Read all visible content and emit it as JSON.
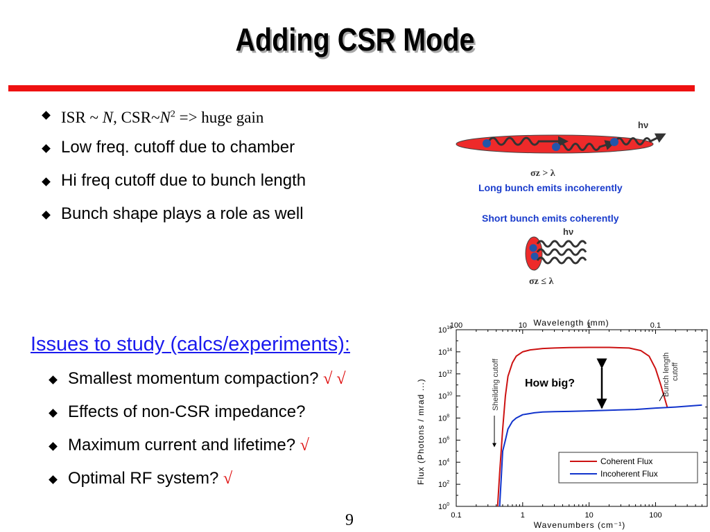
{
  "slide": {
    "title": "Adding CSR Mode",
    "page_number": "9"
  },
  "bullets_top": [
    {
      "type": "formula",
      "a": "ISR ~ ",
      "n1": "N",
      "b": ", CSR~",
      "n2": "N",
      "sup": "2",
      "c": " => huge gain"
    },
    {
      "type": "text",
      "text": "Low freq. cutoff due to chamber"
    },
    {
      "type": "text",
      "text": "Hi freq cutoff due to bunch length"
    },
    {
      "type": "text",
      "text": "Bunch shape plays a role as well"
    }
  ],
  "issues_heading": "Issues to study (calcs/experiments):",
  "bullets_bottom": [
    {
      "text": "Smallest momentum compaction?",
      "check": "√ √"
    },
    {
      "text": "Effects of non-CSR impedance?",
      "check": ""
    },
    {
      "text": "Maximum current and lifetime?",
      "check": "√"
    },
    {
      "text": "Optimal RF system?",
      "check": "√"
    }
  ],
  "diagram": {
    "hv_top": "hν",
    "long_condition": "σz > λ",
    "long_caption": "Long bunch emits incoherently",
    "short_caption": "Short bunch emits coherently",
    "hv_bottom": "hν",
    "short_condition": "σz ≤ λ",
    "bunch_color": "#ee2a2a",
    "electron_color": "#2255aa",
    "caption_color": "#1a3ccc"
  },
  "chart_data": {
    "type": "line",
    "x_scale": "log",
    "y_scale": "log",
    "xlim": [
      0.1,
      600
    ],
    "ylim": [
      1,
      1e+16
    ],
    "xlabel": "Wavenumbers (cm⁻¹)",
    "ylabel": "Flux (Photons / mrad   ...)",
    "top_axis_label": "Wavelength (mm)",
    "x_ticks": [
      "0.1",
      "1",
      "10",
      "100"
    ],
    "top_ticks": [
      "100",
      "10",
      "1",
      "0.1"
    ],
    "y_tick_exponents": [
      "0",
      "2",
      "4",
      "6",
      "8",
      "10",
      "12",
      "14",
      "16"
    ],
    "series": [
      {
        "name": "Coherent Flux",
        "color": "#cc1111",
        "x": [
          0.42,
          0.45,
          0.5,
          0.55,
          0.6,
          0.7,
          0.8,
          1,
          1.3,
          2,
          3,
          5,
          10,
          20,
          40,
          60,
          80,
          100,
          120,
          150
        ],
        "y": [
          1,
          1000.0,
          10000000.0,
          10000000000.0,
          600000000000.0,
          10000000000000.0,
          40000000000000.0,
          100000000000000.0,
          150000000000000.0,
          200000000000000.0,
          220000000000000.0,
          240000000000000.0,
          250000000000000.0,
          250000000000000.0,
          220000000000000.0,
          130000000000000.0,
          40000000000000.0,
          3000000000000.0,
          100000000000.0,
          1000000000.0
        ]
      },
      {
        "name": "Incoherent Flux",
        "color": "#1133cc",
        "x": [
          0.45,
          0.48,
          0.5,
          0.55,
          0.6,
          0.7,
          0.8,
          1,
          1.5,
          2,
          3,
          5,
          10,
          50,
          100,
          200,
          500
        ],
        "y": [
          1,
          1000.0,
          100000.0,
          1000000.0,
          10000000.0,
          50000000.0,
          100000000.0,
          200000000.0,
          300000000.0,
          350000000.0,
          380000000.0,
          400000000.0,
          450000000.0,
          600000000.0,
          800000000.0,
          1000000000.0,
          1500000000.0
        ]
      }
    ],
    "annotations": {
      "shielding": "Sheilding cutoff",
      "bunch_length_1": "Bunch length",
      "bunch_length_2": "cutoff",
      "how_big": "How big?"
    },
    "grid": false,
    "legend": "bottom-right"
  }
}
